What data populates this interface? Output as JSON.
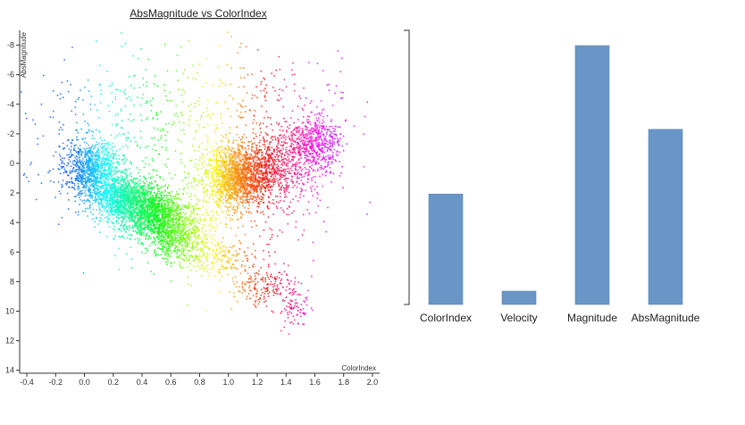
{
  "chart_data": [
    {
      "type": "scatter",
      "title": "AbsMagnitude vs ColorIndex",
      "xlabel": "ColorIndex",
      "ylabel": "AbsMagnitude",
      "xlim": [
        -0.45,
        2.05
      ],
      "ylim": [
        -9,
        14.2
      ],
      "y_inverted": true,
      "x_ticks": [
        -0.4,
        -0.2,
        0.0,
        0.2,
        0.4,
        0.6,
        0.8,
        1.0,
        1.2,
        1.4,
        1.6,
        1.8,
        2.0
      ],
      "x_tick_labels": [
        "-0.4",
        "-0.2",
        "0.0",
        "0.2",
        "0.4",
        "0.6",
        "0.8",
        "1.0",
        "1.2",
        "1.4",
        "1.6",
        "1.8",
        "2.0"
      ],
      "y_ticks": [
        -8,
        -6,
        -4,
        -2,
        0,
        2,
        4,
        6,
        8,
        10,
        12,
        14
      ],
      "y_tick_labels": [
        "-8",
        "-6",
        "-4",
        "-2",
        "0",
        "2",
        "4",
        "6",
        "8",
        "10",
        "12",
        "14"
      ],
      "color_encoding": "hue by ColorIndex (blue to magenta)",
      "clusters": [
        {
          "cx": 0.05,
          "cy": 0.3,
          "sx": 0.1,
          "sy": 0.9,
          "n": 900
        },
        {
          "cx": 0.25,
          "cy": 2.2,
          "sx": 0.12,
          "sy": 0.7,
          "n": 1100
        },
        {
          "cx": 0.45,
          "cy": 3.4,
          "sx": 0.12,
          "sy": 0.8,
          "n": 1300
        },
        {
          "cx": 0.65,
          "cy": 4.8,
          "sx": 0.1,
          "sy": 0.8,
          "n": 600
        },
        {
          "cx": 1.05,
          "cy": 0.9,
          "sx": 0.12,
          "sy": 1.0,
          "n": 1500
        },
        {
          "cx": 1.3,
          "cy": 0.2,
          "sx": 0.15,
          "sy": 1.2,
          "n": 700
        },
        {
          "cx": 1.6,
          "cy": -1.3,
          "sx": 0.09,
          "sy": 0.9,
          "n": 550
        },
        {
          "cx": 0.85,
          "cy": 6.2,
          "sx": 0.15,
          "sy": 0.7,
          "n": 250
        },
        {
          "cx": 1.25,
          "cy": 8.3,
          "sx": 0.12,
          "sy": 0.8,
          "n": 200
        },
        {
          "cx": 1.45,
          "cy": 9.8,
          "sx": 0.06,
          "sy": 0.7,
          "n": 90
        },
        {
          "cx": 0.2,
          "cy": -2.5,
          "sx": 0.35,
          "sy": 2.5,
          "n": 350
        },
        {
          "cx": 1.2,
          "cy": -3.0,
          "sx": 0.35,
          "sy": 2.5,
          "n": 300
        },
        {
          "cx": 0.9,
          "cy": 3.0,
          "sx": 0.45,
          "sy": 2.0,
          "n": 300
        }
      ]
    },
    {
      "type": "bar",
      "categories": [
        "ColorIndex",
        "Velocity",
        "Magnitude",
        "AbsMagnitude"
      ],
      "values": [
        2.9,
        0.35,
        6.8,
        4.6
      ],
      "ylim": [
        0,
        7.2
      ],
      "bar_color": "#6996c6",
      "axis_color": "#333333"
    }
  ]
}
